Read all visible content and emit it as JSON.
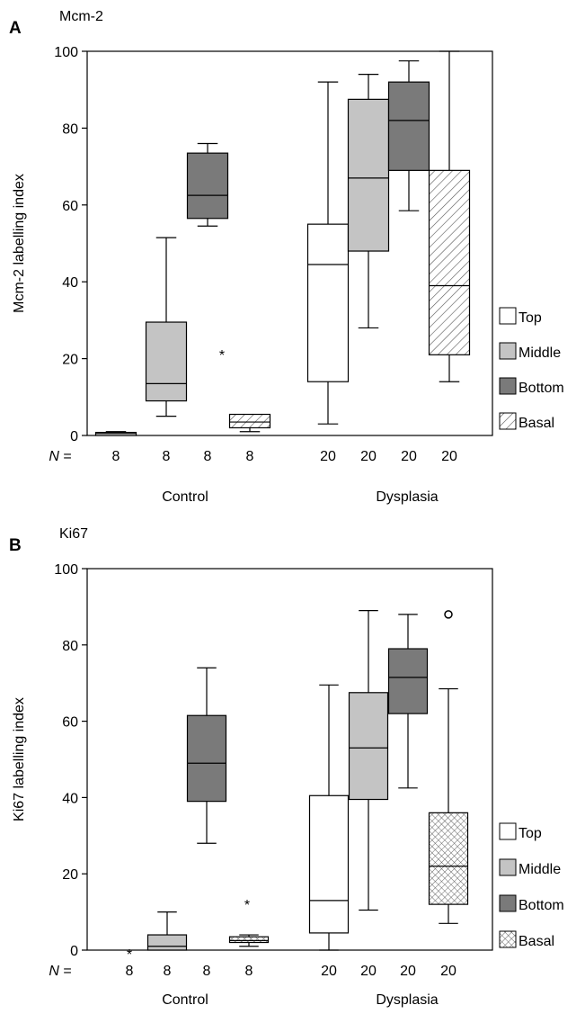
{
  "figure": {
    "group_labels": [
      "Control",
      "Dysplasia"
    ],
    "n_prefix_italic": "N",
    "n_prefix_rest": " ="
  },
  "chart_data": [
    {
      "panel_label": "A",
      "type": "boxplot",
      "title": "Mcm-2",
      "ylabel": "Mcm-2 labelling index",
      "ylim": [
        0,
        100
      ],
      "yticks": [
        0,
        20,
        40,
        60,
        80,
        100
      ],
      "legend_placement": "right",
      "legend": [
        {
          "name": "Top",
          "fill": "#ffffff",
          "pattern": "none"
        },
        {
          "name": "Middle",
          "fill": "#c4c4c4",
          "pattern": "none"
        },
        {
          "name": "Bottom",
          "fill": "#7a7a7a",
          "pattern": "none"
        },
        {
          "name": "Basal",
          "fill": "#ffffff",
          "pattern": "diagonal-hatch"
        }
      ],
      "groups": [
        {
          "label": "Control",
          "boxes": [
            {
              "series": "Top",
              "n": "8",
              "min": 0,
              "q1": 0,
              "median": 0.5,
              "q3": 0.8,
              "max": 1
            },
            {
              "series": "Middle",
              "n": "8",
              "min": 5,
              "q1": 9,
              "median": 13.5,
              "q3": 29.5,
              "max": 51.5
            },
            {
              "series": "Bottom",
              "n": "8",
              "min": 54.5,
              "q1": 56.5,
              "median": 62.5,
              "q3": 73.5,
              "max": 76
            },
            {
              "series": "Basal",
              "n": "8",
              "min": 1,
              "q1": 2,
              "median": 3.5,
              "q3": 5.5,
              "max": 5.5,
              "outliers": [
                {
                  "value": 22,
                  "marker": "*"
                }
              ]
            }
          ]
        },
        {
          "label": "Dysplasia",
          "boxes": [
            {
              "series": "Top",
              "n": "20",
              "min": 3,
              "q1": 14,
              "median": 44.5,
              "q3": 55,
              "max": 92
            },
            {
              "series": "Middle",
              "n": "20",
              "min": 28,
              "q1": 48,
              "median": 67,
              "q3": 87.5,
              "max": 94
            },
            {
              "series": "Bottom",
              "n": "20",
              "min": 58.5,
              "q1": 69,
              "median": 82,
              "q3": 92,
              "max": 97.5
            },
            {
              "series": "Basal",
              "n": "20",
              "min": 14,
              "q1": 21,
              "median": 39,
              "q3": 69,
              "max": 100
            }
          ]
        }
      ]
    },
    {
      "panel_label": "B",
      "type": "boxplot",
      "title": "Ki67",
      "ylabel": "Ki67 labelling index",
      "ylim": [
        0,
        100
      ],
      "yticks": [
        0,
        20,
        40,
        60,
        80,
        100
      ],
      "legend_placement": "right",
      "legend": [
        {
          "name": "Top",
          "fill": "#ffffff",
          "pattern": "none"
        },
        {
          "name": "Middle",
          "fill": "#c4c4c4",
          "pattern": "none"
        },
        {
          "name": "Bottom",
          "fill": "#7a7a7a",
          "pattern": "none"
        },
        {
          "name": "Basal",
          "fill": "#ffffff",
          "pattern": "crosshatch"
        }
      ],
      "groups": [
        {
          "label": "Control",
          "boxes": [
            {
              "series": "Top",
              "n": "8",
              "min": 0,
              "q1": 0,
              "median": 0,
              "q3": 0,
              "max": 0,
              "outliers": [
                {
                  "value": 0,
                  "marker": "*"
                }
              ]
            },
            {
              "series": "Middle",
              "n": "8",
              "min": 0,
              "q1": 0,
              "median": 1,
              "q3": 4,
              "max": 10
            },
            {
              "series": "Bottom",
              "n": "8",
              "min": 28,
              "q1": 39,
              "median": 49,
              "q3": 61.5,
              "max": 74
            },
            {
              "series": "Basal",
              "n": "8",
              "min": 1,
              "q1": 2,
              "median": 2.5,
              "q3": 3.5,
              "max": 4,
              "outliers": [
                {
                  "value": 13,
                  "marker": "*"
                }
              ]
            }
          ]
        },
        {
          "label": "Dysplasia",
          "boxes": [
            {
              "series": "Top",
              "n": "20",
              "min": 0,
              "q1": 4.5,
              "median": 13,
              "q3": 40.5,
              "max": 69.5
            },
            {
              "series": "Middle",
              "n": "20",
              "min": 10.5,
              "q1": 39.5,
              "median": 53,
              "q3": 67.5,
              "max": 89
            },
            {
              "series": "Bottom",
              "n": "20",
              "min": 42.5,
              "q1": 62,
              "median": 71.5,
              "q3": 79,
              "max": 88
            },
            {
              "series": "Basal",
              "n": "20",
              "min": 7,
              "q1": 12,
              "median": 22,
              "q3": 36,
              "max": 68.5,
              "outliers": [
                {
                  "value": 88,
                  "marker": "o"
                }
              ]
            }
          ]
        }
      ]
    }
  ]
}
